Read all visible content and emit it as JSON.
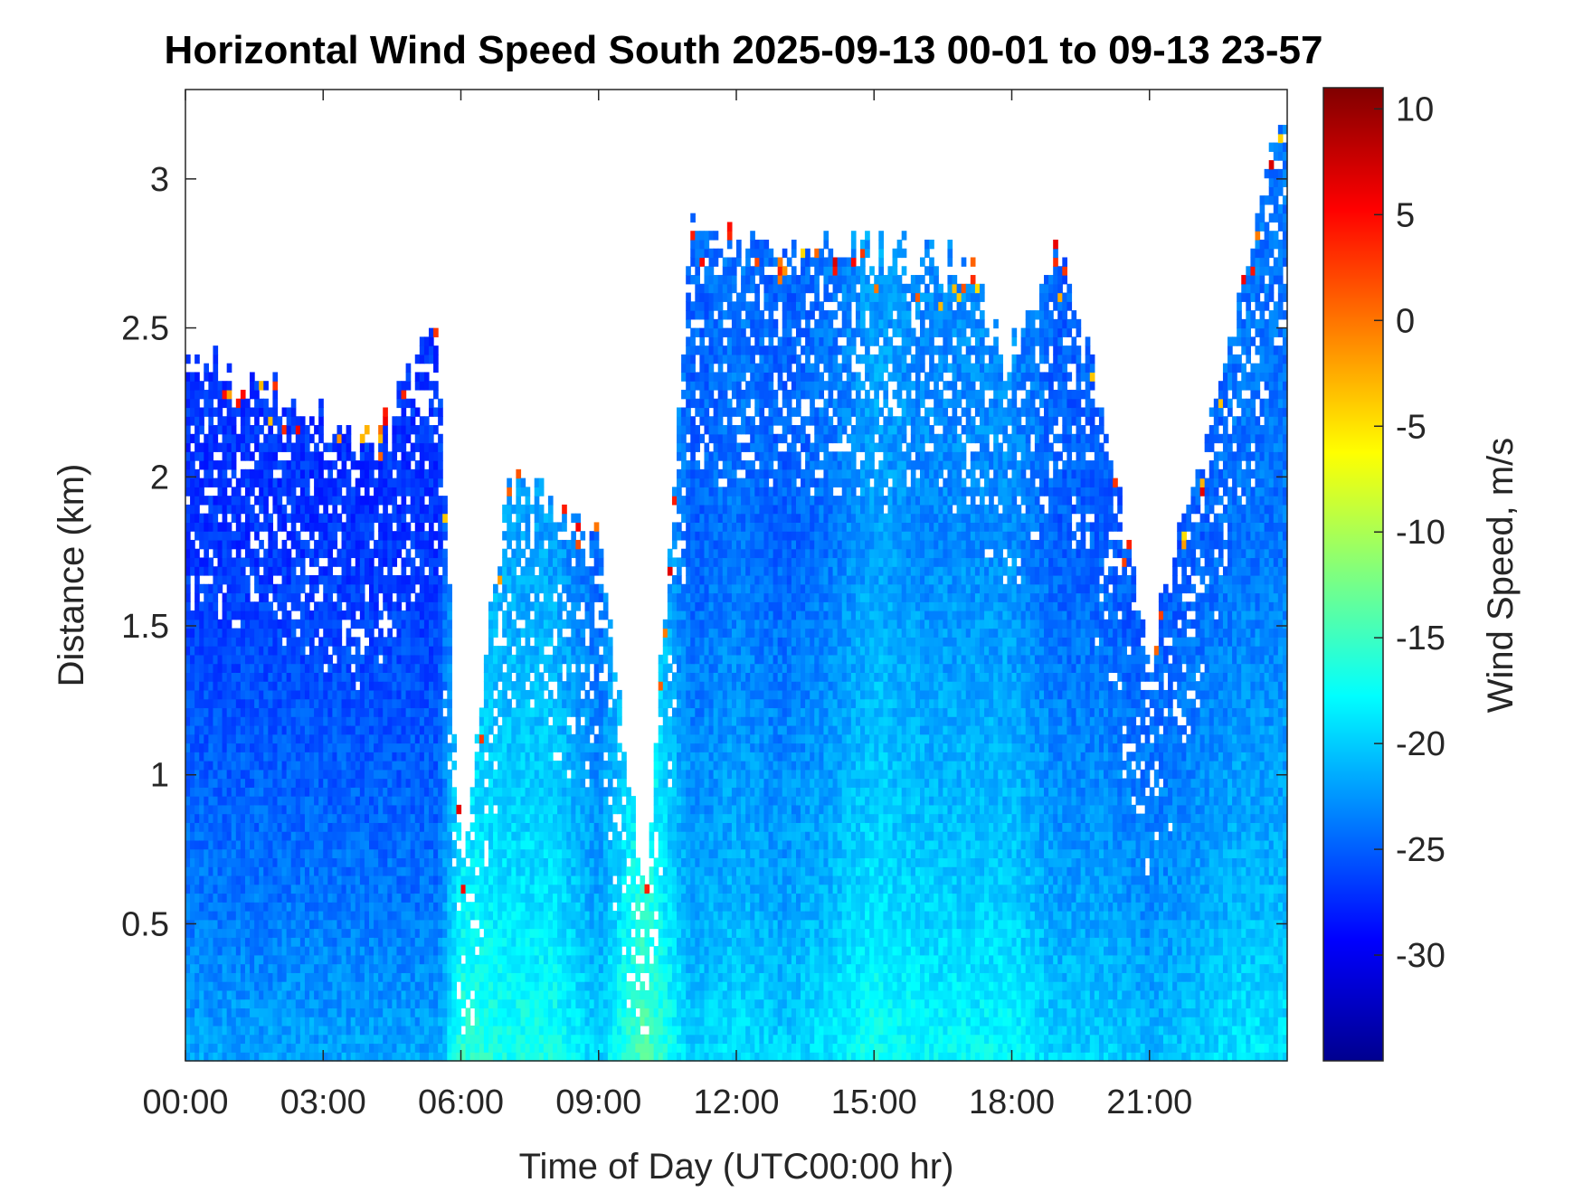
{
  "chart_data": {
    "type": "heatmap",
    "title": "Horizontal Wind Speed South 2025-09-13 00-01 to 09-13 23-57",
    "xlabel": "Time of Day (UTC00:00 hr)",
    "ylabel": "Distance (km)",
    "colorbar_label": "Wind Speed, m/s",
    "x_ticks": [
      {
        "value": 0,
        "label": "00:00"
      },
      {
        "value": 3,
        "label": "03:00"
      },
      {
        "value": 6,
        "label": "06:00"
      },
      {
        "value": 9,
        "label": "09:00"
      },
      {
        "value": 12,
        "label": "12:00"
      },
      {
        "value": 15,
        "label": "15:00"
      },
      {
        "value": 18,
        "label": "18:00"
      },
      {
        "value": 21,
        "label": "21:00"
      }
    ],
    "y_ticks": [
      {
        "value": 0.5,
        "label": "0.5"
      },
      {
        "value": 1,
        "label": "1"
      },
      {
        "value": 1.5,
        "label": "1.5"
      },
      {
        "value": 2,
        "label": "2"
      },
      {
        "value": 2.5,
        "label": "2.5"
      },
      {
        "value": 3,
        "label": "3"
      }
    ],
    "colorbar_ticks": [
      {
        "value": 10,
        "label": "10"
      },
      {
        "value": 5,
        "label": "5"
      },
      {
        "value": 0,
        "label": "0"
      },
      {
        "value": -5,
        "label": "-5"
      },
      {
        "value": -10,
        "label": "-10"
      },
      {
        "value": -15,
        "label": "-15"
      },
      {
        "value": -20,
        "label": "-20"
      },
      {
        "value": -25,
        "label": "-25"
      },
      {
        "value": -30,
        "label": "-30"
      }
    ],
    "xlim": [
      0,
      24
    ],
    "ylim": [
      0.04,
      3.3
    ],
    "clim": [
      -35,
      11
    ],
    "colormap": "jet",
    "heatmap_profile": {
      "description_hours": [
        0,
        2,
        4,
        5.5,
        6,
        7,
        8,
        9,
        10,
        11,
        12,
        13,
        14,
        15,
        16,
        17,
        18,
        19,
        20,
        21,
        22,
        23,
        24
      ],
      "top_km": [
        2.4,
        2.3,
        2.1,
        2.5,
        0.7,
        2.0,
        1.9,
        1.8,
        0.55,
        2.8,
        2.8,
        2.75,
        2.75,
        2.75,
        2.75,
        2.7,
        2.4,
        2.8,
        2.2,
        1.4,
        2.0,
        2.6,
        3.3
      ],
      "core_wind_ms": [
        -24,
        -24,
        -24,
        -24,
        -18,
        -19,
        -19,
        -22,
        -16,
        -22,
        -21,
        -22,
        -21,
        -19,
        -20,
        -20,
        -20,
        -22,
        -22,
        -23,
        -22,
        -21,
        -21
      ]
    }
  }
}
